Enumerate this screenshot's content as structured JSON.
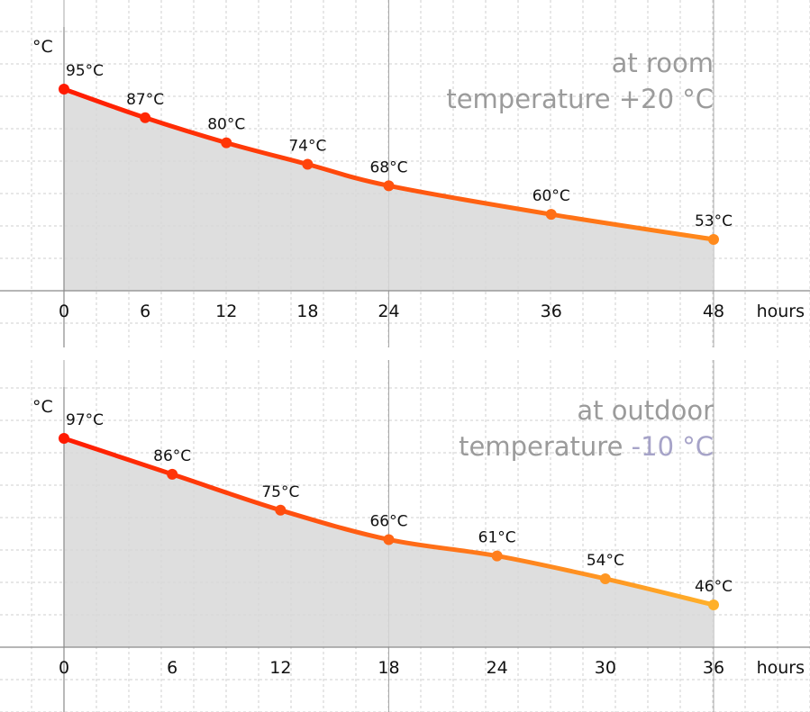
{
  "chart_data": [
    {
      "type": "line",
      "title": "at room temperature +20 °C",
      "annotation": {
        "lines": [
          [
            {
              "text": "at room",
              "color": "#9b9b9b"
            }
          ],
          [
            {
              "text": "temperature +20 °C",
              "color": "#9b9b9b"
            }
          ]
        ]
      },
      "ylabel": "°C",
      "xlabel": "hours",
      "x": [
        0,
        6,
        12,
        18,
        24,
        36,
        48
      ],
      "xticks": [
        "0",
        "6",
        "12",
        "18",
        "24",
        "36",
        "48"
      ],
      "xlim": [
        0,
        48
      ],
      "series": [
        {
          "values": [
            95,
            87,
            80,
            74,
            68,
            60,
            53
          ],
          "labels": [
            "95°C",
            "87°C",
            "80°C",
            "74°C",
            "68°C",
            "60°C",
            "53°C"
          ]
        }
      ],
      "gradient": [
        "#ff1a00",
        "#ff8a1c"
      ],
      "fill_color": "#d8d8d8",
      "grid": true
    },
    {
      "type": "line",
      "title": "at outdoor temperature -10 °C",
      "annotation": {
        "lines": [
          [
            {
              "text": "at outdoor",
              "color": "#9b9b9b"
            }
          ],
          [
            {
              "text": "temperature ",
              "color": "#9b9b9b"
            },
            {
              "text": "-10 °C",
              "color": "#a6a3c8"
            }
          ]
        ]
      },
      "ylabel": "°C",
      "xlabel": "hours",
      "x": [
        0,
        6,
        12,
        18,
        24,
        30,
        36
      ],
      "xticks": [
        "0",
        "6",
        "12",
        "18",
        "24",
        "30",
        "36"
      ],
      "xlim": [
        0,
        36
      ],
      "series": [
        {
          "values": [
            97,
            86,
            75,
            66,
            61,
            54,
            46
          ],
          "labels": [
            "97°C",
            "86°C",
            "75°C",
            "66°C",
            "61°C",
            "54°C",
            "46°C"
          ]
        }
      ],
      "gradient": [
        "#ff1a00",
        "#ffb02a"
      ],
      "fill_color": "#d8d8d8",
      "grid": true
    }
  ]
}
